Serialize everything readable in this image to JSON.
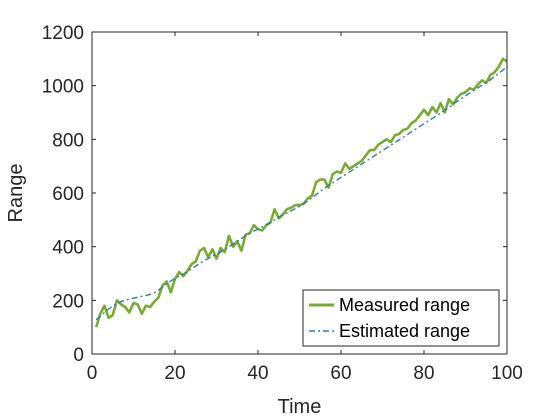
{
  "chart_data": {
    "type": "line",
    "xlabel": "Time",
    "ylabel": "Range",
    "xlim": [
      0,
      100
    ],
    "ylim": [
      0,
      1200
    ],
    "xticks": [
      0,
      20,
      40,
      60,
      80,
      100
    ],
    "yticks": [
      0,
      200,
      400,
      600,
      800,
      1000,
      1200
    ],
    "grid": false,
    "legend_position": "bottom-right",
    "series": [
      {
        "name": "Measured range",
        "color": "#77AC30",
        "style": "solid",
        "x": [
          1,
          2,
          3,
          4,
          5,
          6,
          7,
          8,
          9,
          10,
          11,
          12,
          13,
          14,
          15,
          16,
          17,
          18,
          19,
          20,
          21,
          22,
          23,
          24,
          25,
          26,
          27,
          28,
          29,
          30,
          31,
          32,
          33,
          34,
          35,
          36,
          37,
          38,
          39,
          40,
          41,
          42,
          43,
          44,
          45,
          46,
          47,
          48,
          49,
          50,
          51,
          52,
          53,
          54,
          55,
          56,
          57,
          58,
          59,
          60,
          61,
          62,
          63,
          64,
          65,
          66,
          67,
          68,
          69,
          70,
          71,
          72,
          73,
          74,
          75,
          76,
          77,
          78,
          79,
          80,
          81,
          82,
          83,
          84,
          85,
          86,
          87,
          88,
          89,
          90,
          91,
          92,
          93,
          94,
          95,
          96,
          97,
          98,
          99,
          100
        ],
        "values": [
          100,
          150,
          180,
          135,
          145,
          200,
          185,
          175,
          155,
          190,
          185,
          150,
          180,
          175,
          195,
          210,
          255,
          270,
          230,
          280,
          305,
          290,
          310,
          335,
          345,
          385,
          395,
          360,
          390,
          355,
          395,
          380,
          440,
          400,
          420,
          385,
          445,
          450,
          480,
          465,
          460,
          480,
          490,
          540,
          505,
          520,
          540,
          545,
          555,
          555,
          560,
          580,
          590,
          640,
          650,
          650,
          620,
          670,
          680,
          675,
          710,
          690,
          700,
          710,
          720,
          740,
          760,
          760,
          780,
          790,
          800,
          790,
          815,
          820,
          835,
          840,
          860,
          870,
          890,
          910,
          890,
          920,
          900,
          935,
          900,
          950,
          930,
          955,
          970,
          975,
          990,
          985,
          1005,
          1020,
          1010,
          1040,
          1050,
          1070,
          1100,
          1090
        ]
      },
      {
        "name": "Estimated range",
        "color": "#2E7CB0",
        "style": "dash-dot",
        "x": [
          1,
          2,
          3,
          4,
          5,
          6,
          7,
          8,
          9,
          10,
          11,
          12,
          13,
          14,
          15,
          16,
          17,
          18,
          19,
          20,
          21,
          22,
          23,
          24,
          25,
          26,
          27,
          28,
          29,
          30,
          31,
          32,
          33,
          34,
          35,
          36,
          37,
          38,
          39,
          40,
          41,
          42,
          43,
          44,
          45,
          46,
          47,
          48,
          49,
          50,
          51,
          52,
          53,
          54,
          55,
          56,
          57,
          58,
          59,
          60,
          61,
          62,
          63,
          64,
          65,
          66,
          67,
          68,
          69,
          70,
          71,
          72,
          73,
          74,
          75,
          76,
          77,
          78,
          79,
          80,
          81,
          82,
          83,
          84,
          85,
          86,
          87,
          88,
          89,
          90,
          91,
          92,
          93,
          94,
          95,
          96,
          97,
          98,
          99,
          100
        ],
        "values": [
          128,
          140,
          155,
          168,
          178,
          188,
          195,
          200,
          205,
          208,
          212,
          215,
          218,
          222,
          228,
          238,
          250,
          262,
          272,
          282,
          290,
          298,
          308,
          318,
          328,
          338,
          348,
          356,
          364,
          372,
          380,
          390,
          400,
          410,
          420,
          430,
          440,
          450,
          458,
          466,
          474,
          482,
          490,
          500,
          510,
          518,
          526,
          534,
          542,
          550,
          560,
          570,
          582,
          594,
          606,
          618,
          628,
          638,
          648,
          658,
          668,
          678,
          688,
          698,
          708,
          718,
          728,
          738,
          748,
          758,
          768,
          778,
          788,
          798,
          808,
          818,
          828,
          838,
          848,
          858,
          868,
          878,
          888,
          898,
          908,
          918,
          930,
          942,
          952,
          962,
          972,
          982,
          992,
          1002,
          1012,
          1022,
          1034,
          1046,
          1058,
          1070
        ]
      }
    ]
  }
}
